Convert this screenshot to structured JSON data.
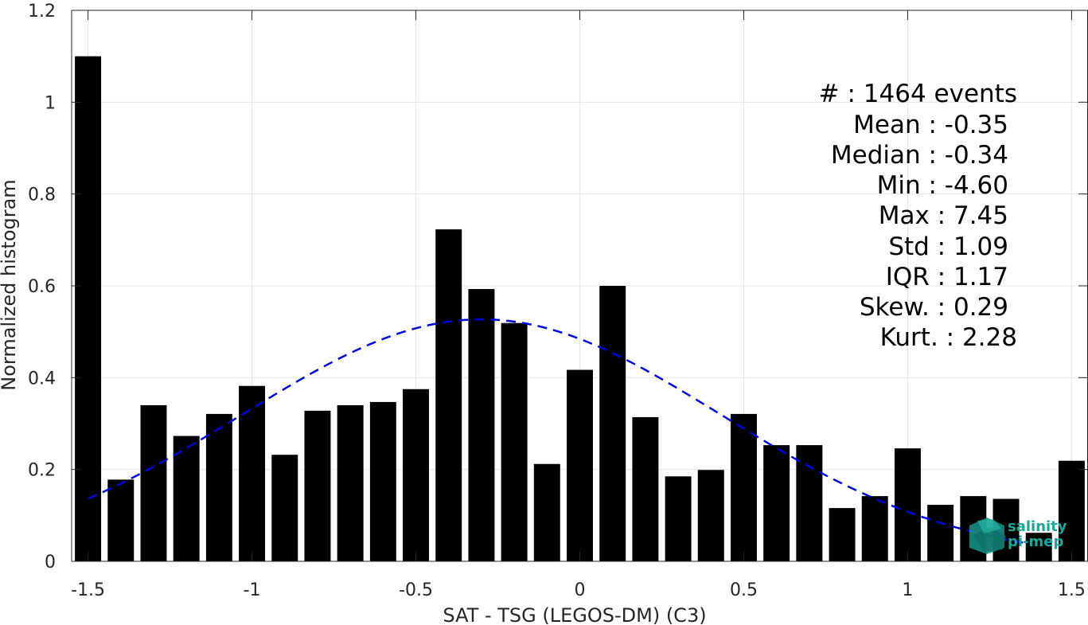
{
  "chart_data": {
    "type": "bar",
    "xlabel": "SAT - TSG (LEGOS-DM) (C3)",
    "ylabel": "Normalized histogram",
    "xlim": [
      -1.55,
      1.55
    ],
    "ylim": [
      0,
      1.2
    ],
    "x_ticks": [
      -1.5,
      -1,
      -0.5,
      0,
      0.5,
      1,
      1.5
    ],
    "x_tick_labels": [
      "-1.5",
      "-1",
      "-0.5",
      "0",
      "0.5",
      "1",
      "1.5"
    ],
    "y_ticks": [
      0,
      0.2,
      0.4,
      0.6,
      0.8,
      1,
      1.2
    ],
    "y_tick_labels": [
      "0",
      "0.2",
      "0.4",
      "0.6",
      "0.8",
      "1",
      "1.2"
    ],
    "grid": true,
    "bar_color": "#000000",
    "bar_width": 0.08,
    "bins": [
      -1.5,
      -1.4,
      -1.3,
      -1.2,
      -1.1,
      -1.0,
      -0.9,
      -0.8,
      -0.7,
      -0.6,
      -0.5,
      -0.4,
      -0.3,
      -0.2,
      -0.1,
      0.0,
      0.1,
      0.2,
      0.3,
      0.4,
      0.5,
      0.6,
      0.7,
      0.8,
      0.9,
      1.0,
      1.1,
      1.2,
      1.3,
      1.4,
      1.5
    ],
    "values": [
      1.1,
      0.178,
      0.34,
      0.273,
      0.321,
      0.382,
      0.232,
      0.328,
      0.34,
      0.347,
      0.375,
      0.723,
      0.593,
      0.519,
      0.212,
      0.417,
      0.6,
      0.314,
      0.185,
      0.199,
      0.321,
      0.253,
      0.253,
      0.116,
      0.142,
      0.246,
      0.123,
      0.142,
      0.136,
      0.062,
      0.219
    ],
    "fit_curve": {
      "type": "normal",
      "mean": -0.3,
      "peak": 0.527,
      "sigma": 0.73,
      "x_range": [
        -1.5,
        1.36
      ],
      "color": "#0000e0",
      "style": "dashed"
    },
    "stats_lines": [
      "#  : 1464 events",
      "Mean : -0.35",
      "Median : -0.34",
      "Min : -4.60",
      "Max : 7.45",
      "Std : 1.09",
      "IQR : 1.17",
      "Skew. : 0.29",
      "Kurt. : 2.28"
    ],
    "logo": {
      "line1": "salinity",
      "line2": "pi-mep",
      "color": "#1aa89a"
    }
  }
}
